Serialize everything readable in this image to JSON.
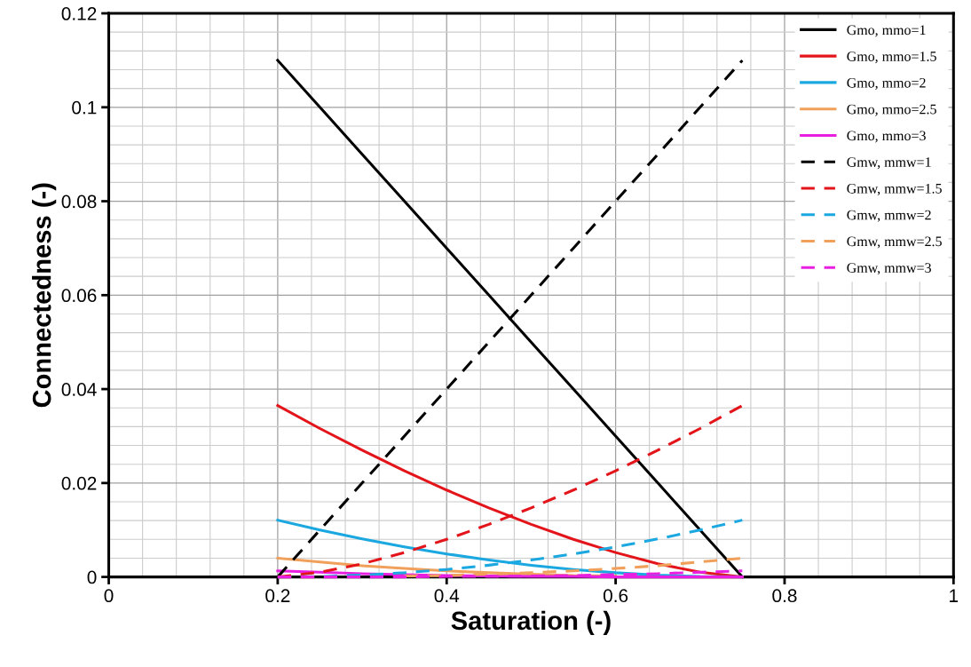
{
  "chart_data": {
    "type": "line",
    "xlabel": "Saturation (-)",
    "ylabel": "Connectedness (-)",
    "x": [
      0.2,
      0.25,
      0.3,
      0.35,
      0.4,
      0.45,
      0.5,
      0.55,
      0.6,
      0.65,
      0.7,
      0.75
    ],
    "xlim": [
      0,
      1
    ],
    "xticks": [
      0,
      0.2,
      0.4,
      0.6,
      0.8,
      1
    ],
    "ylim": [
      0,
      0.12
    ],
    "yticks": [
      0,
      0.02,
      0.04,
      0.06,
      0.08,
      0.1,
      0.12
    ],
    "grid": true,
    "legend": "top right",
    "marker": "none",
    "series": [
      {
        "name": "Gmo, mmo=1",
        "color": "#000000",
        "line_style": "solid",
        "values": [
          0.11,
          0.1,
          0.09,
          0.08,
          0.07,
          0.06,
          0.05,
          0.04,
          0.03,
          0.02,
          0.01,
          0
        ]
      },
      {
        "name": "Gmo, mmo=1.5",
        "color": "#e3151a",
        "line_style": "solid",
        "values": [
          0.0365,
          0.0316,
          0.027,
          0.0226,
          0.0185,
          0.0147,
          0.0112,
          0.008,
          0.0052,
          0.0028,
          0.001,
          0
        ]
      },
      {
        "name": "Gmo, mmo=2",
        "color": "#1ba8e0",
        "line_style": "solid",
        "values": [
          0.0121,
          0.01,
          0.0081,
          0.0064,
          0.0049,
          0.0036,
          0.0025,
          0.0016,
          0.0009,
          0.0004,
          0.0001,
          0
        ]
      },
      {
        "name": "Gmo, mmo=2.5",
        "color": "#f0a05a",
        "line_style": "solid",
        "values": [
          0.004,
          0.0032,
          0.0024,
          0.0018,
          0.0013,
          0.0009,
          0.0006,
          0.0003,
          0.0002,
          null,
          0,
          0
        ]
      },
      {
        "name": "Gmo, mmo=3",
        "color": "#e81fe0",
        "line_style": "solid",
        "values": [
          0.0013,
          0.001,
          0.0007,
          0.0005,
          0.0003,
          0.0002,
          0.0001,
          0.0001,
          0,
          0,
          0,
          0
        ]
      },
      {
        "name": "Gmw, mmw=1",
        "color": "#000000",
        "line_style": "dashed",
        "values": [
          0,
          0.01,
          0.02,
          0.03,
          0.04,
          0.05,
          0.06,
          0.07,
          0.08,
          0.09,
          0.1,
          0.11
        ]
      },
      {
        "name": "Gmw, mmw=1.5",
        "color": "#e3151a",
        "line_style": "dashed",
        "values": [
          0,
          0.001,
          0.0028,
          0.0052,
          0.008,
          0.0112,
          0.0147,
          0.0185,
          0.0226,
          0.027,
          0.0316,
          0.0365
        ]
      },
      {
        "name": "Gmw, mmw=2",
        "color": "#1ba8e0",
        "line_style": "dashed",
        "values": [
          0,
          0.0001,
          0.0004,
          0.0009,
          0.0016,
          0.0025,
          0.0036,
          0.0049,
          0.0064,
          0.0081,
          0.01,
          0.0121
        ]
      },
      {
        "name": "Gmw, mmw=2.5",
        "color": "#f0a05a",
        "line_style": "dashed",
        "values": [
          0,
          0,
          null,
          0.0002,
          0.0003,
          0.0006,
          0.0009,
          0.0013,
          0.0018,
          0.0024,
          0.0032,
          0.004
        ]
      },
      {
        "name": "Gmw, mmw=3",
        "color": "#e81fe0",
        "line_style": "dashed",
        "values": [
          0,
          0,
          0,
          0,
          0.0001,
          0.0001,
          0.0002,
          0.0003,
          0.0005,
          0.0007,
          0.001,
          0.0013
        ]
      }
    ]
  }
}
